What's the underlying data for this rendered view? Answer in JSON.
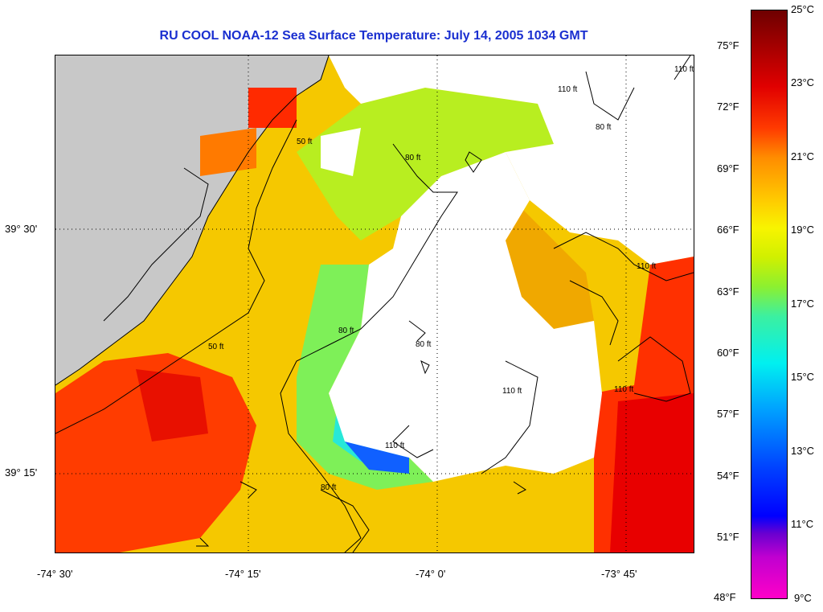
{
  "title": "RU COOL  NOAA-12  Sea Surface Temperature:  July 14, 2005 1034 GMT",
  "map": {
    "lon_labels": [
      "-74° 30'",
      "-74° 15'",
      "-74° 0'",
      "-73° 45'"
    ],
    "lat_labels": [
      "39° 30'",
      "39° 15'"
    ],
    "contour_labels": [
      "110 ft",
      "80 ft",
      "50 ft",
      "80 ft",
      "110 ft",
      "50 ft",
      "80 ft",
      "80 ft",
      "110 ft",
      "110 ft",
      "110 ft",
      "80 ft",
      "110 ft"
    ],
    "colors": {
      "land": "#c8c8c8",
      "cloud": "#ffffff",
      "contour": "#000000"
    }
  },
  "colorbar": {
    "fahrenheit_labels": [
      "75°F",
      "72°F",
      "69°F",
      "66°F",
      "63°F",
      "60°F",
      "57°F",
      "54°F",
      "51°F",
      "48°F"
    ],
    "celsius_labels": [
      "25°C",
      "23°C",
      "21°C",
      "19°C",
      "17°C",
      "15°C",
      "13°C",
      "11°C",
      "9°C"
    ]
  }
}
